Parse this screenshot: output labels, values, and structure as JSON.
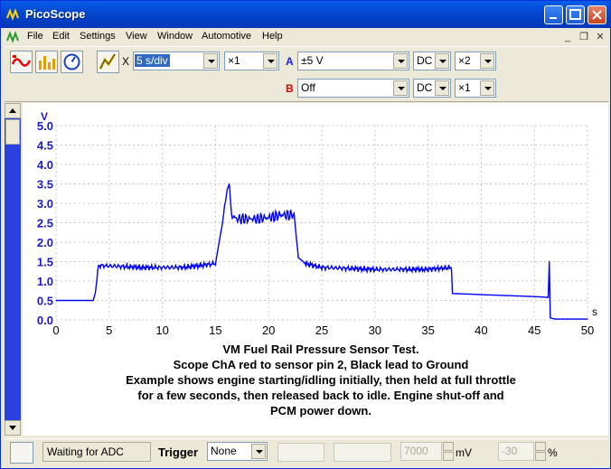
{
  "window": {
    "title": "PicoScope"
  },
  "menu": {
    "items": [
      "File",
      "Edit",
      "Settings",
      "View",
      "Window",
      "Automotive",
      "Help"
    ]
  },
  "toolbar": {
    "timebase_mult_label": "X",
    "timebase": "5 s/div",
    "timebase_zoom": "×1",
    "channel_a": {
      "label": "A",
      "range": "±5 V",
      "coupling": "DC",
      "gain": "×2",
      "color": "#1a1aff"
    },
    "channel_b": {
      "label": "B",
      "range": "Off",
      "coupling": "DC",
      "gain": "×1",
      "color": "#e00000"
    }
  },
  "status": {
    "adc_status": "Waiting for ADC",
    "trigger_label": "Trigger",
    "trigger_mode": "None",
    "threshold": "7000",
    "threshold_unit": "mV",
    "pretrigger": "-30",
    "pretrigger_unit": "%"
  },
  "chart_data": {
    "type": "line",
    "ylabel": "V",
    "xlabel": "s",
    "xlim": [
      0,
      50
    ],
    "ylim": [
      0,
      5
    ],
    "x_ticks": [
      0,
      5,
      10,
      15,
      20,
      25,
      30,
      35,
      40,
      45,
      50
    ],
    "y_ticks": [
      "0.0",
      "0.5",
      "1.0",
      "1.5",
      "2.0",
      "2.5",
      "3.0",
      "3.5",
      "4.0",
      "4.5",
      "5.0"
    ],
    "grid": true,
    "series": [
      {
        "color": "#0000ff",
        "x": [
          0,
          3.5,
          3.7,
          4.0,
          8,
          12,
          15,
          15.6,
          16.1,
          16.3,
          16.5,
          17,
          19,
          20.5,
          21,
          22.4,
          22.8,
          23.5,
          25,
          30,
          35,
          37.2,
          37.3,
          40,
          45,
          46.3,
          46.4,
          46.5,
          47,
          50
        ],
        "y": [
          0.5,
          0.5,
          0.7,
          1.4,
          1.35,
          1.35,
          1.45,
          2.4,
          3.35,
          3.5,
          2.7,
          2.6,
          2.6,
          2.65,
          2.7,
          2.7,
          1.6,
          1.45,
          1.35,
          1.3,
          1.3,
          1.35,
          0.68,
          0.65,
          0.6,
          0.58,
          1.5,
          0.05,
          0.02,
          0.02
        ]
      }
    ],
    "annotation": [
      "VM Fuel Rail Pressure Sensor Test.",
      "Scope ChA red to sensor pin 2, Black lead to Ground",
      "Example shows engine starting/idling initially, then held at full throttle",
      "for a few seconds, then released back to idle. Engine shut-off and",
      "PCM power down."
    ]
  }
}
